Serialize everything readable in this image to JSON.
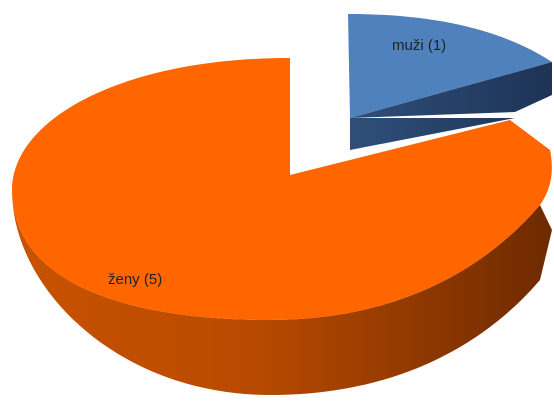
{
  "chart_data": {
    "type": "pie",
    "style": "3d-exploded",
    "slices": [
      {
        "label": "muži (1)",
        "value": 1,
        "color": "#4F81BD",
        "side_color": "#2B4A75"
      },
      {
        "label": "ženy (5)",
        "value": 5,
        "color": "#FF6600",
        "side_color": "#A84300"
      }
    ],
    "legend": "none"
  }
}
